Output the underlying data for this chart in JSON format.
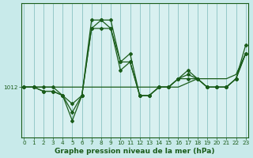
{
  "title": "Graphe pression niveau de la mer (hPa)",
  "bg_color": "#c8eaea",
  "plot_bg_color": "#d8f0f0",
  "line_color": "#1a5c1a",
  "grid_color": "#7ab8b8",
  "x_ticks": [
    0,
    1,
    2,
    3,
    4,
    5,
    6,
    7,
    8,
    9,
    10,
    11,
    12,
    13,
    14,
    15,
    16,
    17,
    18,
    19,
    20,
    21,
    22,
    23
  ],
  "y_label_value": 1012,
  "ylim": [
    1006,
    1022
  ],
  "series": [
    {
      "y": [
        1012,
        1012,
        1012,
        1012,
        1012,
        1012,
        1012,
        1012,
        1012,
        1012,
        1012,
        1012,
        1012,
        1012,
        1012,
        1012,
        1012,
        1012.5,
        1013,
        1013,
        1013,
        1013,
        1013.5,
        1016
      ],
      "marker": false,
      "linewidth": 0.9
    },
    {
      "y": [
        1012,
        1012,
        1012,
        1012,
        1011,
        1010,
        1011,
        1019,
        1020,
        1019,
        1015,
        1015,
        1011,
        1011,
        1012,
        1012,
        1013,
        1013,
        1013,
        1012,
        1012,
        1012,
        1013,
        1016
      ],
      "marker": true,
      "linewidth": 0.9
    },
    {
      "y": [
        1012,
        1012,
        1011.5,
        1011.5,
        1011,
        1008,
        1011,
        1020,
        1020,
        1020,
        1015,
        1016,
        1011,
        1011,
        1012,
        1012,
        1013,
        1014,
        1013,
        1012,
        1012,
        1012,
        1013,
        1017
      ],
      "marker": true,
      "linewidth": 0.9
    },
    {
      "y": [
        1012,
        1012,
        1011.5,
        1011.5,
        1011,
        1009,
        1011,
        1019,
        1019,
        1019,
        1014,
        1015,
        1011,
        1011,
        1012,
        1012,
        1013,
        1013.5,
        1013,
        1012,
        1012,
        1012,
        1013,
        1016
      ],
      "marker": true,
      "linewidth": 0.9
    }
  ],
  "xlim": [
    -0.3,
    23.3
  ],
  "fontsize_title": 6.5,
  "fontsize_tick": 5.2
}
